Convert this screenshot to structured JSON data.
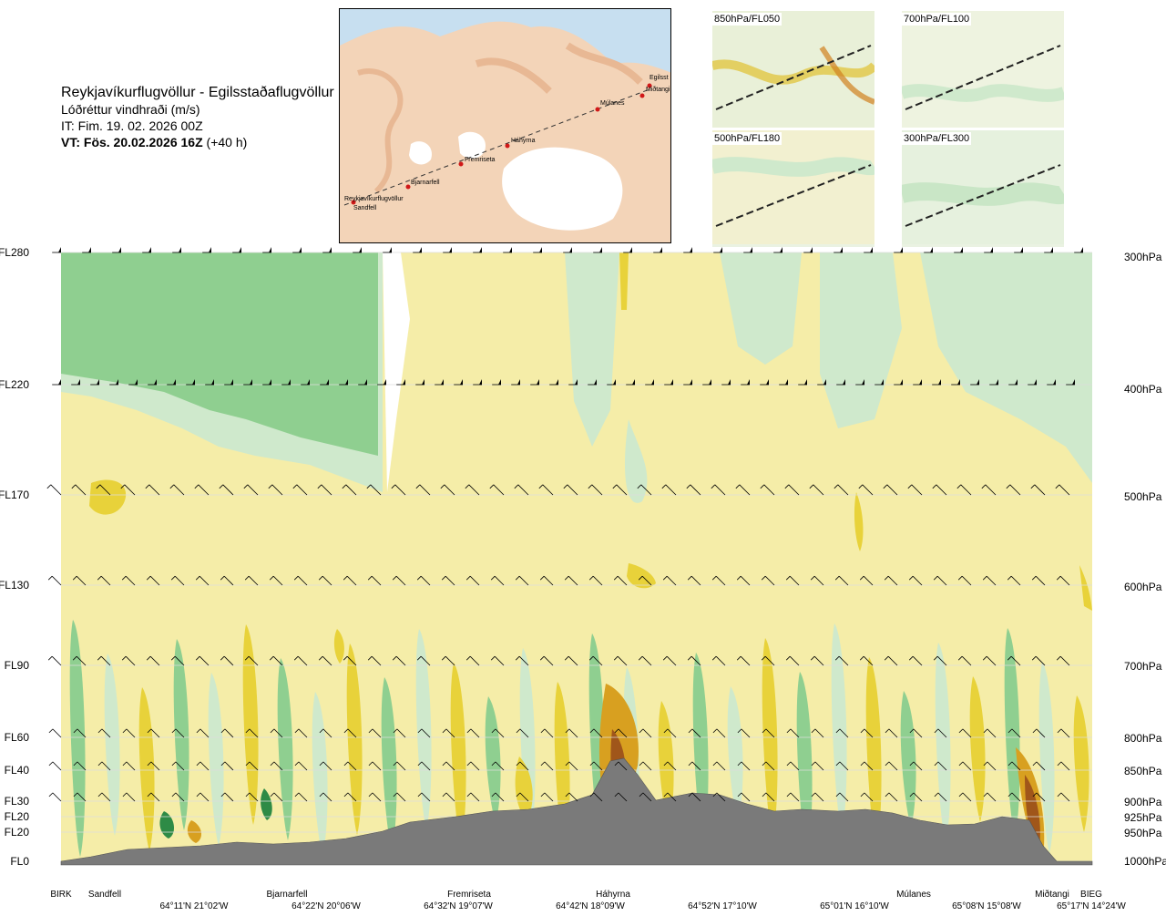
{
  "header": {
    "route": "Reykjavíkurflugvöllur - Egilsstaðaflugvöllur",
    "parameter": "Lóðréttur vindhraði (m/s)",
    "issue_time": "IT: Fim. 19. 02. 2026 00Z",
    "valid_time_bold": "VT: Fös. 20.02.2026 16Z",
    "valid_time_offset": "(+40 h)"
  },
  "route_map": {
    "waypoints": [
      "Reykjavíkurflugvöllur",
      "Sandfell",
      "Bjarnarfell",
      "Fremriseta",
      "Háhyrna",
      "Múlanes",
      "Miðtangi",
      "Egilsst"
    ]
  },
  "insets": [
    {
      "label": "850hPa/FL050"
    },
    {
      "label": "700hPa/FL100"
    },
    {
      "label": "500hPa/FL180"
    },
    {
      "label": "300hPa/FL300"
    }
  ],
  "chart_data": {
    "type": "heatmap",
    "title": "Lóðréttur vindhraði (m/s)",
    "flight_levels_left": [
      "FL280",
      "FL220",
      "FL170",
      "FL130",
      "FL90",
      "FL60",
      "FL40",
      "FL30",
      "FL20",
      "FL20",
      "FL0"
    ],
    "pressure_levels_right": [
      "300hPa",
      "400hPa",
      "500hPa",
      "600hPa",
      "700hPa",
      "800hPa",
      "850hPa",
      "900hPa",
      "925hPa",
      "950hPa",
      "1000hPa"
    ],
    "pressure_values_hpa": [
      300,
      400,
      500,
      600,
      700,
      800,
      850,
      900,
      925,
      950,
      1000
    ],
    "waypoints_bottom": [
      "BIRK",
      "Sandfell",
      "Bjarnarfell",
      "Fremriseta",
      "Háhyrna",
      "Múlanes",
      "Miðtangi",
      "BIEG"
    ],
    "coordinates_bottom": [
      "64°11'N 21°02'W",
      "64°22'N 20°06'W",
      "64°32'N 19°07'W",
      "64°42'N 18°09'W",
      "64°52'N 17°10'W",
      "65°01'N 16°10'W",
      "65°08'N 15°08'W",
      "65°17'N 14°24'W"
    ],
    "colors": {
      "strong_sink": "#2e8b46",
      "sink": "#8fcf90",
      "weak_sink": "#cfe9cc",
      "neutral_low": "#ffffff",
      "neutral": "#f5eda8",
      "weak_lift": "#e8d23a",
      "lift": "#d8a020",
      "strong_lift": "#a0561a",
      "terrain": "#7a7a7a"
    }
  }
}
